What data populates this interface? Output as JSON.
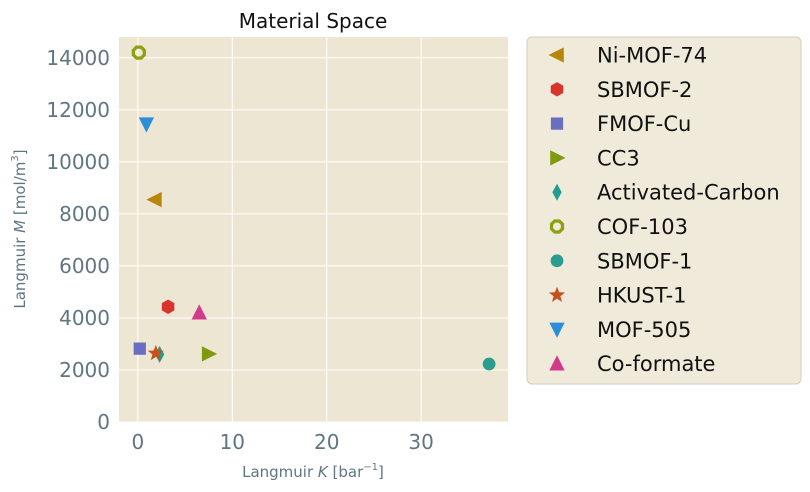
{
  "chart_data": {
    "type": "scatter",
    "title": "Material Space",
    "xlabel": {
      "prefix": "Langmuir ",
      "var": "K",
      "unit_open": " [bar",
      "unit_sup": "−1",
      "unit_close": "]"
    },
    "ylabel": {
      "prefix": "Langmuir ",
      "var": "M",
      "unit_open": " [mol/m",
      "unit_sup": "3",
      "unit_close": "]"
    },
    "xlim": [
      -2,
      39.2
    ],
    "ylim": [
      0,
      14800
    ],
    "xticks": [
      0,
      10,
      20,
      30
    ],
    "yticks": [
      0,
      2000,
      4000,
      6000,
      8000,
      10000,
      12000,
      14000
    ],
    "grid": true,
    "legend_position": "outside-right",
    "series": [
      {
        "name": "Ni-MOF-74",
        "marker": "triangle-left",
        "color": "#b8860b",
        "points": [
          [
            1.8,
            8550
          ]
        ]
      },
      {
        "name": "SBMOF-2",
        "marker": "hexagon",
        "color": "#d9342b",
        "points": [
          [
            3.2,
            4430
          ]
        ]
      },
      {
        "name": "FMOF-Cu",
        "marker": "square",
        "color": "#6a6ec0",
        "points": [
          [
            0.2,
            2820
          ]
        ]
      },
      {
        "name": "CC3",
        "marker": "triangle-right",
        "color": "#7f9a0d",
        "points": [
          [
            7.5,
            2620
          ]
        ]
      },
      {
        "name": "Activated-Carbon",
        "marker": "thin-diamond",
        "color": "#1f9e8e",
        "points": [
          [
            2.3,
            2600
          ]
        ]
      },
      {
        "name": "COF-103",
        "marker": "octagon-open",
        "color": "#8ba10f",
        "points": [
          [
            0.1,
            14200
          ]
        ]
      },
      {
        "name": "SBMOF-1",
        "marker": "circle",
        "color": "#2a9d8f",
        "points": [
          [
            37.2,
            2230
          ]
        ]
      },
      {
        "name": "HKUST-1",
        "marker": "star",
        "color": "#c8501e",
        "points": [
          [
            1.9,
            2640
          ]
        ]
      },
      {
        "name": "MOF-505",
        "marker": "triangle-down",
        "color": "#2b8ed8",
        "points": [
          [
            0.9,
            11450
          ]
        ]
      },
      {
        "name": "Co-formate",
        "marker": "triangle-up",
        "color": "#d43a8a",
        "points": [
          [
            6.5,
            4200
          ]
        ]
      }
    ]
  }
}
